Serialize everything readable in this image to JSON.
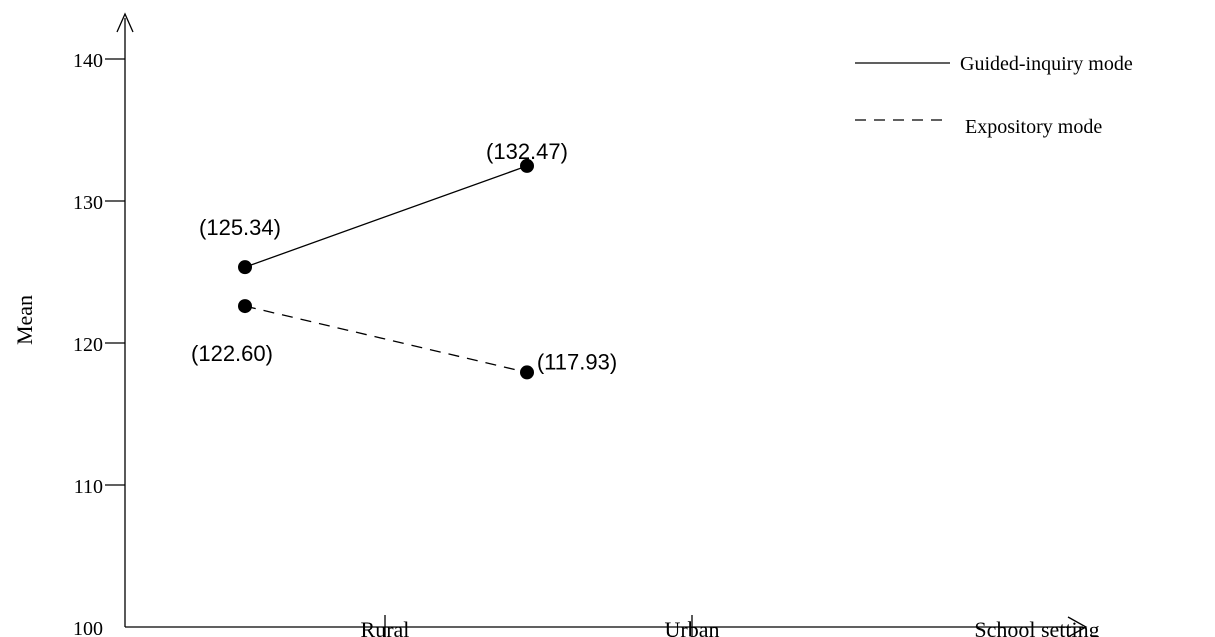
{
  "chart_data": {
    "type": "line",
    "title": "",
    "xlabel": "School setting",
    "ylabel": "Mean",
    "categories": [
      "Rural",
      "Urban"
    ],
    "y_ticks": [
      "100",
      "110",
      "120",
      "130",
      "140"
    ],
    "ylim": [
      100,
      144
    ],
    "grid": false,
    "legend_position": "top-right",
    "series": [
      {
        "name": "Guided-inquiry mode",
        "values": [
          125.34,
          132.47
        ],
        "labels": [
          "(125.34)",
          "(132.47)"
        ],
        "line_style": "solid",
        "color": "#000000"
      },
      {
        "name": "Expository mode",
        "values": [
          122.6,
          117.93
        ],
        "labels": [
          "(122.60)",
          "(117.93)"
        ],
        "line_style": "dashed",
        "color": "#000000"
      }
    ]
  }
}
